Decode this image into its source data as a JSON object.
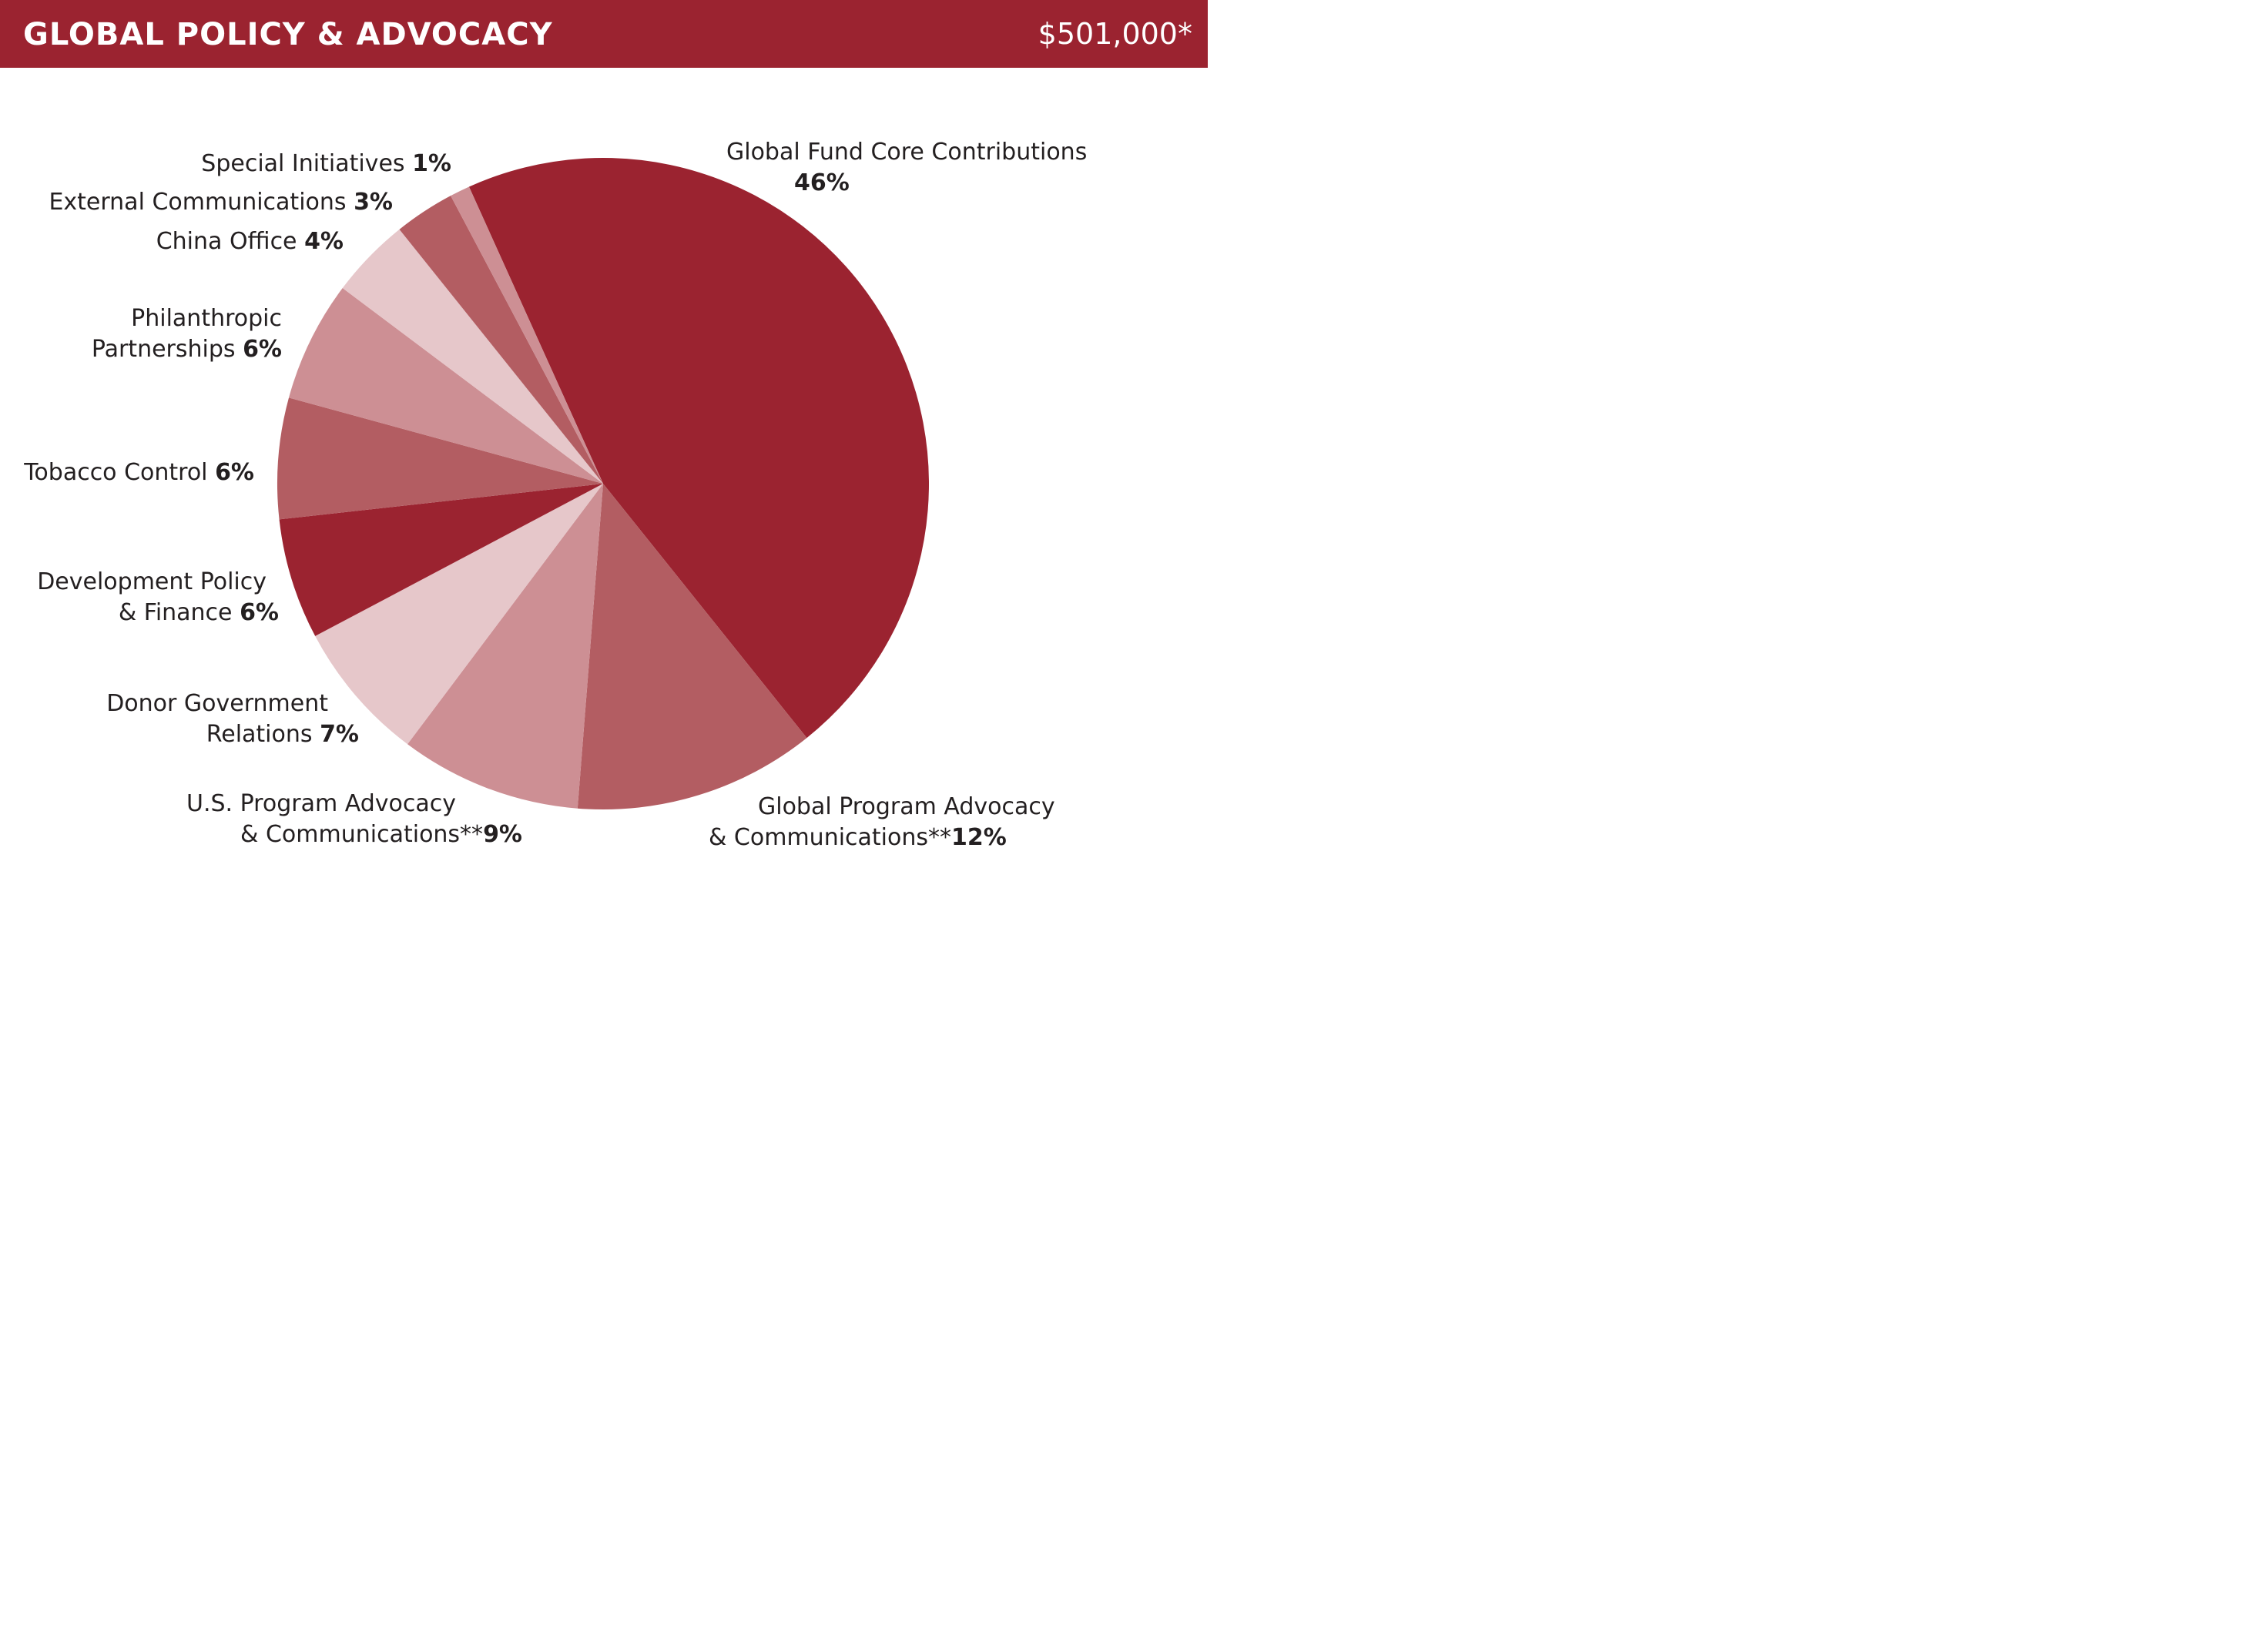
{
  "header": {
    "title": "GLOBAL POLICY & ADVOCACY",
    "total": "$501,000*"
  },
  "colors": {
    "header_bg": "#9b2330",
    "dark": "#9b2330",
    "medium": "#b35d62",
    "light": "#cd8f94",
    "pale": "#e6c7ca",
    "text": "#231f20"
  },
  "chart_data": {
    "type": "pie",
    "slices": [
      {
        "label": "Global Fund Core Contributions",
        "value": 46,
        "value_label": "46%",
        "color": "#9b2330"
      },
      {
        "label": "Global Program Advocacy & Communications**",
        "value": 12,
        "value_label": "12%",
        "color": "#b35d62"
      },
      {
        "label": "U.S. Program Advocacy & Communications**",
        "value": 9,
        "value_label": "9%",
        "color": "#cd8f94"
      },
      {
        "label": "Donor Government Relations",
        "value": 7,
        "value_label": "7%",
        "color": "#e6c7ca"
      },
      {
        "label": "Development Policy & Finance",
        "value": 6,
        "value_label": "6%",
        "color": "#9b2330"
      },
      {
        "label": "Tobacco Control",
        "value": 6,
        "value_label": "6%",
        "color": "#b35d62"
      },
      {
        "label": "Philanthropic Partnerships",
        "value": 6,
        "value_label": "6%",
        "color": "#cd8f94"
      },
      {
        "label": "China Office",
        "value": 4,
        "value_label": "4%",
        "color": "#e6c7ca"
      },
      {
        "label": "External Communications",
        "value": 3,
        "value_label": "3%",
        "color": "#b35d62"
      },
      {
        "label": "Special Initiatives",
        "value": 1,
        "value_label": "1%",
        "color": "#cd8f94"
      }
    ],
    "labels": {
      "s0": {
        "line1": "Global Fund Core Contributions",
        "line2": "",
        "pct": "46%"
      },
      "s1": {
        "line1": "Global Program Advocacy",
        "line2": "& Communications**",
        "pct": "12%"
      },
      "s2": {
        "line1": "U.S. Program Advocacy",
        "line2": "& Communications**",
        "pct": "9%"
      },
      "s3": {
        "line1": "Donor Government",
        "line2": "Relations ",
        "pct": "7%"
      },
      "s4": {
        "line1": "Development Policy",
        "line2": "& Finance ",
        "pct": "6%"
      },
      "s5": {
        "line1": "Tobacco Control ",
        "pct": "6%"
      },
      "s6": {
        "line1": "Philanthropic",
        "line2": "Partnerships ",
        "pct": "6%"
      },
      "s7": {
        "line1": "China Office ",
        "pct": "4%"
      },
      "s8": {
        "line1": "External Communications ",
        "pct": "3%"
      },
      "s9": {
        "line1": "Special Initiatives ",
        "pct": "1%"
      }
    }
  }
}
